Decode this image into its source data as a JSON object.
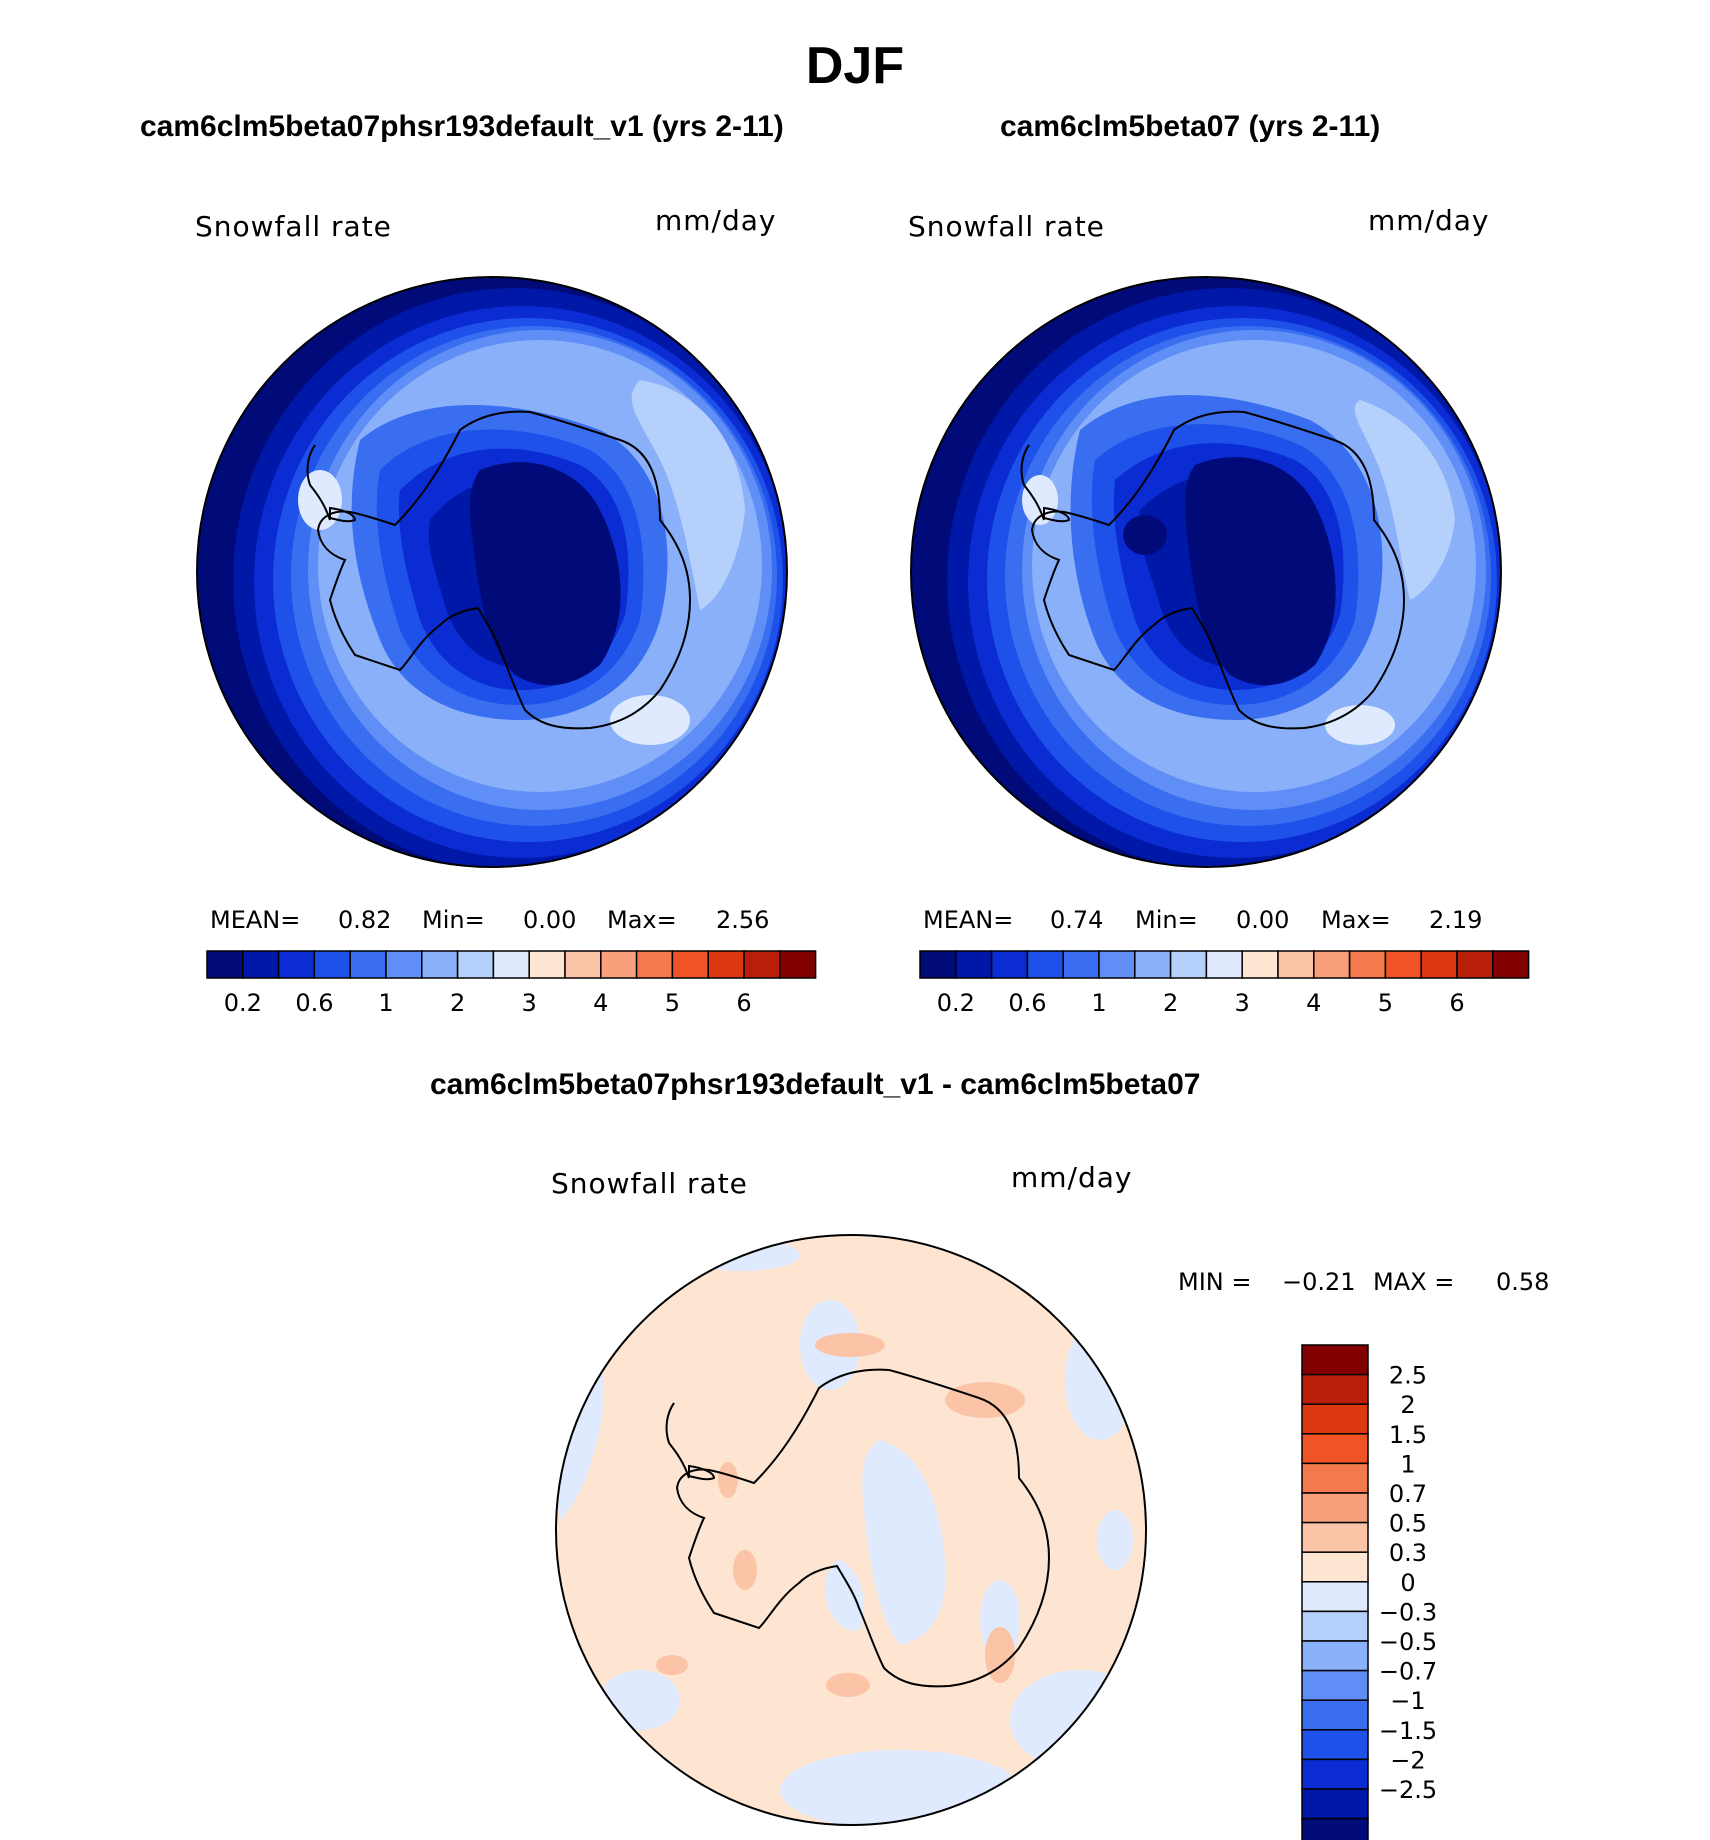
{
  "page_title": "DJF",
  "panels": [
    {
      "id": "left",
      "title": "cam6clm5beta07phsr193default_v1 (yrs 2-11)",
      "variable": "Snowfall rate",
      "units": "mm/day",
      "stats": {
        "mean_label": "MEAN=",
        "mean": "0.82",
        "min_label": "Min=",
        "min": "0.00",
        "max_label": "Max=",
        "max": "2.56"
      }
    },
    {
      "id": "right",
      "title": "cam6clm5beta07 (yrs 2-11)",
      "variable": "Snowfall rate",
      "units": "mm/day",
      "stats": {
        "mean_label": "MEAN=",
        "mean": "0.74",
        "min_label": "Min=",
        "min": "0.00",
        "max_label": "Max=",
        "max": "2.19"
      }
    }
  ],
  "diff_panel": {
    "title": "cam6clm5beta07phsr193default_v1 - cam6clm5beta07",
    "variable": "Snowfall rate",
    "units": "mm/day",
    "min_label": "MIN =",
    "min": "−0.21",
    "max_label": "MAX =",
    "max": "0.58"
  },
  "colorbars": {
    "abs": {
      "colors": [
        "#000a78",
        "#0018a8",
        "#0a2cd2",
        "#1e50ea",
        "#3a6ef0",
        "#5e8ef6",
        "#8ab0fa",
        "#b6d0fc",
        "#dfeaff",
        "#fde5d2",
        "#fcc4a6",
        "#f89f7c",
        "#f47a4e",
        "#f05426",
        "#de3810",
        "#b81e08",
        "#830000"
      ],
      "tick_labels": [
        "0.2",
        "0.6",
        "1",
        "2",
        "3",
        "4",
        "5",
        "6"
      ]
    },
    "diff": {
      "colors_top_to_bottom": [
        "#830000",
        "#b81e08",
        "#de3810",
        "#f05426",
        "#f47a4e",
        "#f89f7c",
        "#fcc4a6",
        "#fde5d2",
        "#dfeaff",
        "#b6d0fc",
        "#8ab0fa",
        "#5e8ef6",
        "#3a6ef0",
        "#1e50ea",
        "#0a2cd2",
        "#0018a8",
        "#000a78"
      ],
      "tick_labels": [
        "2.5",
        "2",
        "1.5",
        "1",
        "0.7",
        "0.5",
        "0.3",
        "0",
        "−0.3",
        "−0.5",
        "−0.7",
        "−1",
        "−1.5",
        "−2",
        "−2.5"
      ]
    }
  }
}
